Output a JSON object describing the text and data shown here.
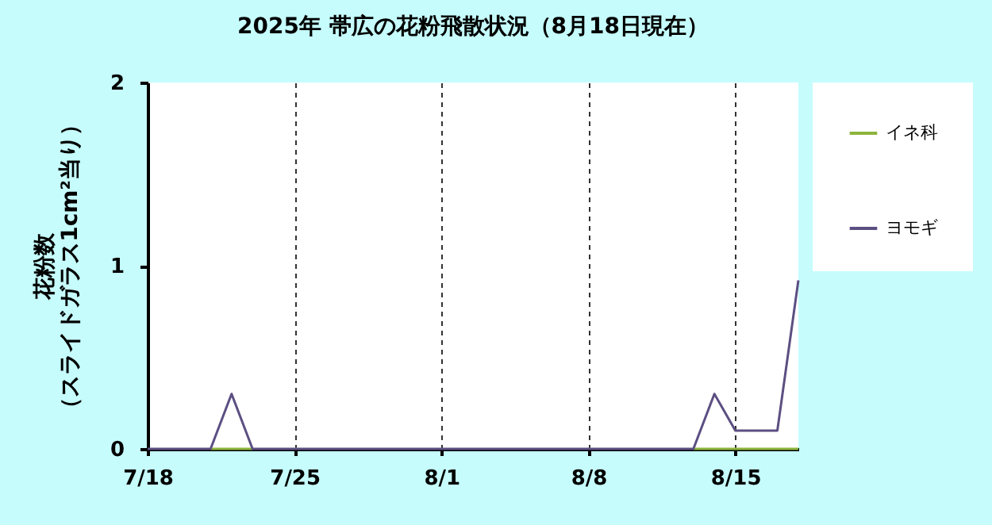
{
  "chart_data": {
    "type": "line",
    "title": "2025年  帯広の花粉飛散状況（8月18日現在）",
    "ylabel": "花粉数（スライドガラス1cm²当り）",
    "x": [
      "--07-18",
      "--07-19",
      "--07-20",
      "--07-21",
      "--07-22",
      "--07-23",
      "--07-24",
      "--07-25",
      "--07-26",
      "--07-27",
      "--07-28",
      "--07-29",
      "--07-30",
      "--07-31",
      "--08-01",
      "--08-02",
      "--08-03",
      "--08-04",
      "--08-05",
      "--08-06",
      "--08-07",
      "--08-08",
      "--08-09",
      "--08-10",
      "--08-11",
      "--08-12",
      "--08-13",
      "--08-14",
      "--08-15",
      "--08-16",
      "--08-17",
      "--08-18"
    ],
    "series": [
      {
        "name": "イネ科",
        "color": "#8cb43c",
        "values": [
          null,
          null,
          null,
          0,
          0,
          0,
          null,
          null,
          null,
          null,
          null,
          null,
          null,
          null,
          null,
          null,
          null,
          null,
          null,
          null,
          null,
          null,
          null,
          null,
          null,
          null,
          0,
          0,
          0,
          0,
          0,
          0
        ]
      },
      {
        "name": "ヨモギ",
        "color": "#5c4f82",
        "values": [
          0,
          0,
          0,
          0,
          0.3,
          0,
          0,
          0,
          0,
          0,
          0,
          0,
          0,
          0,
          0,
          0,
          0,
          0,
          0,
          0,
          0,
          0,
          0,
          0,
          0,
          0,
          0,
          0.3,
          0.1,
          0.1,
          0.1,
          0.92
        ]
      }
    ],
    "xlim": [
      "--07-18",
      "--08-18"
    ],
    "xticks": [
      {
        "value": "--07-18",
        "label": "7/18"
      },
      {
        "value": "--07-25",
        "label": "7/25"
      },
      {
        "value": "--08-01",
        "label": "8/1"
      },
      {
        "value": "--08-08",
        "label": "8/8"
      },
      {
        "value": "--08-15",
        "label": "8/15"
      }
    ],
    "ylim": [
      0,
      2
    ],
    "yticks": [
      0,
      1,
      2
    ],
    "grid": "x",
    "legend": "right",
    "marker": "none",
    "line_style": "solid"
  }
}
